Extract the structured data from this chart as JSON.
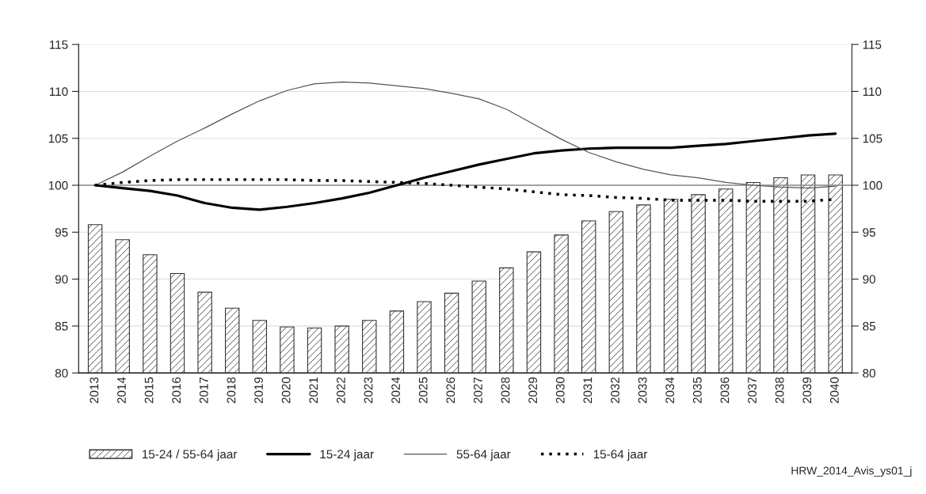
{
  "chart_data": {
    "type": "bar",
    "categories": [
      "2013",
      "2014",
      "2015",
      "2016",
      "2017",
      "2018",
      "2019",
      "2020",
      "2021",
      "2022",
      "2023",
      "2024",
      "2025",
      "2026",
      "2027",
      "2028",
      "2029",
      "2030",
      "2031",
      "2032",
      "2033",
      "2034",
      "2035",
      "2036",
      "2037",
      "2038",
      "2039",
      "2040"
    ],
    "series": [
      {
        "name": "15-24 / 55-64 jaar",
        "color": "#333333",
        "values": [
          95.8,
          94.2,
          92.6,
          90.6,
          88.6,
          86.9,
          85.6,
          84.9,
          84.8,
          85.0,
          85.6,
          86.6,
          87.6,
          88.5,
          89.8,
          91.2,
          92.9,
          94.7,
          96.2,
          97.2,
          97.9,
          98.5,
          99.0,
          99.6,
          100.3,
          100.8,
          101.1,
          101.1
        ]
      },
      {
        "name": "15-24 jaar",
        "type": "line",
        "color": "#000000",
        "line_style": "solid",
        "values": [
          100,
          99.7,
          99.4,
          98.9,
          98.1,
          97.6,
          97.4,
          97.7,
          98.1,
          98.6,
          99.2,
          100.0,
          100.8,
          101.5,
          102.2,
          102.8,
          103.4,
          103.7,
          103.9,
          104.0,
          104.0,
          104.0,
          104.2,
          104.4,
          104.7,
          105.0,
          105.3,
          105.5
        ]
      },
      {
        "name": "55-64 jaar",
        "type": "line",
        "color": "#555555",
        "line_style": "solid",
        "values": [
          100,
          101.4,
          103.1,
          104.7,
          106.1,
          107.6,
          109.0,
          110.1,
          110.8,
          111.0,
          110.9,
          110.6,
          110.3,
          109.8,
          109.2,
          108.1,
          106.5,
          104.9,
          103.5,
          102.5,
          101.7,
          101.1,
          100.8,
          100.3,
          100.0,
          99.8,
          99.7,
          99.9
        ]
      },
      {
        "name": "15-64 jaar",
        "type": "line",
        "color": "#000000",
        "line_style": "dotted",
        "values": [
          100,
          100.3,
          100.5,
          100.6,
          100.6,
          100.6,
          100.6,
          100.6,
          100.5,
          100.5,
          100.4,
          100.3,
          100.2,
          100.0,
          99.8,
          99.6,
          99.3,
          99.0,
          98.9,
          98.7,
          98.6,
          98.4,
          98.4,
          98.4,
          98.3,
          98.3,
          98.3,
          98.5
        ]
      }
    ],
    "ylim": [
      80,
      115
    ],
    "yticks": [
      80,
      85,
      90,
      95,
      100,
      105,
      110,
      115
    ],
    "y2lim": [
      80,
      115
    ],
    "y2ticks": [
      80,
      85,
      90,
      95,
      100,
      105,
      110,
      115
    ],
    "ref_lines": [
      {
        "axis": "y",
        "value": 100,
        "color": "#888888"
      }
    ],
    "grid": "y",
    "legend": "bottom",
    "annotations": [
      "HRW_2014_Avis_ys01_j"
    ]
  }
}
